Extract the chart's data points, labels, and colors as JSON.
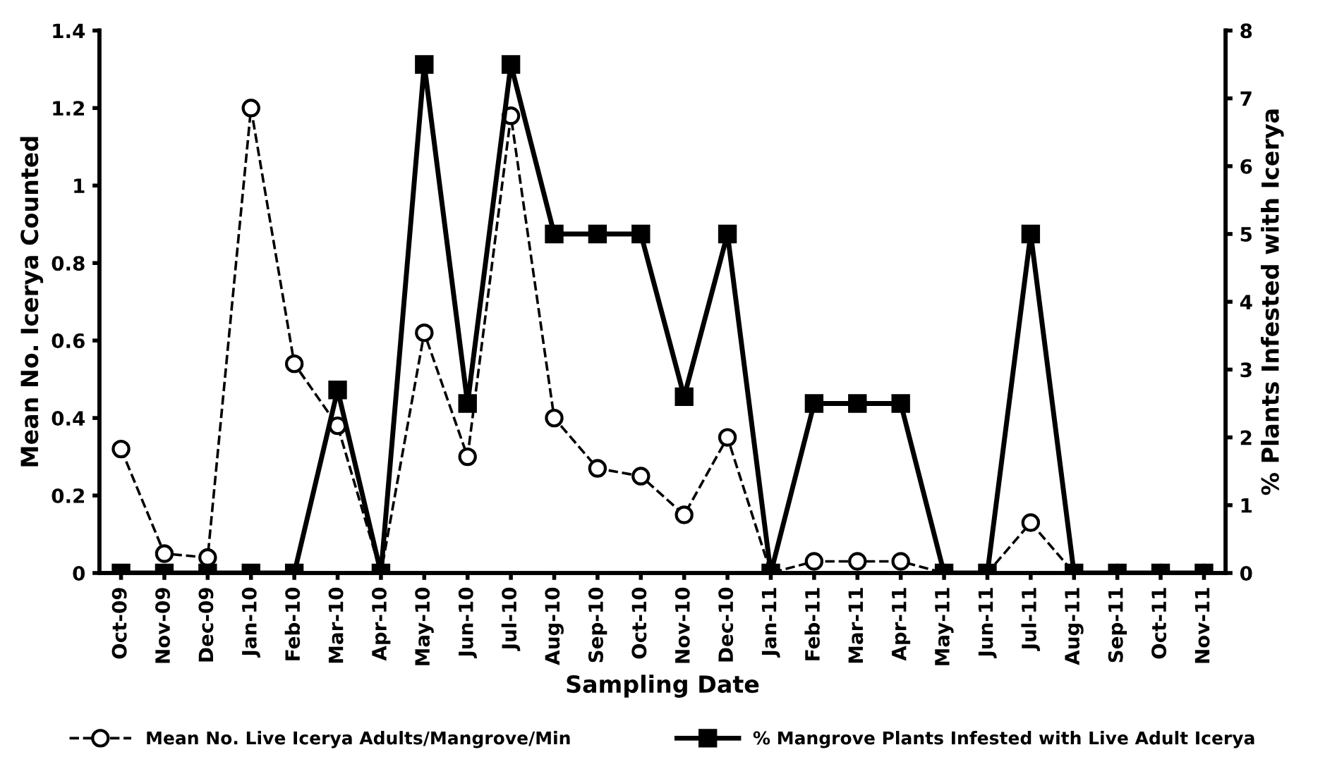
{
  "chart_data": {
    "type": "line",
    "xlabel": "Sampling Date",
    "ylabel": "Mean No. Icerya Counted",
    "y2label": "% Plants Infested with Icerya",
    "categories": [
      "Oct-09",
      "Nov-09",
      "Dec-09",
      "Jan-10",
      "Feb-10",
      "Mar-10",
      "Apr-10",
      "May-10",
      "Jun-10",
      "Jul-10",
      "Aug-10",
      "Sep-10",
      "Oct-10",
      "Nov-10",
      "Dec-10",
      "Jan-11",
      "Feb-11",
      "Mar-11",
      "Apr-11",
      "May-11",
      "Jun-11",
      "Jul-11",
      "Aug-11",
      "Sep-11",
      "Oct-11",
      "Nov-11"
    ],
    "series": [
      {
        "name": "Mean No. Live Icerya Adults/Mangrove/Min",
        "color": "#000000",
        "marker": "circle",
        "line_style": "dashed",
        "values": [
          0.32,
          0.05,
          0.04,
          1.2,
          0.54,
          0.38,
          0,
          0.62,
          0.3,
          1.18,
          0.4,
          0.27,
          0.25,
          0.15,
          0.35,
          0,
          0.03,
          0.03,
          0.03,
          0,
          0,
          0.13,
          0,
          0,
          0,
          0
        ]
      },
      {
        "name": "% Mangrove Plants Infested with Live Adult Icerya",
        "color": "#000000",
        "marker": "square",
        "line_style": "solid",
        "axis": "y2",
        "values": [
          0,
          0,
          0,
          0,
          0,
          2.7,
          0,
          7.5,
          2.5,
          7.5,
          5,
          5,
          5,
          2.6,
          5,
          0,
          2.5,
          2.5,
          2.5,
          0,
          0,
          5,
          0,
          0,
          0,
          0
        ]
      }
    ],
    "ylim": [
      0,
      1.4
    ],
    "yticks": [
      0,
      0.2,
      0.4,
      0.6,
      0.8,
      1,
      1.2,
      1.4
    ],
    "y2lim": [
      0,
      8
    ],
    "y2ticks": [
      0,
      1,
      2,
      3,
      4,
      5,
      6,
      7,
      8
    ],
    "grid": false,
    "legend": "bottom"
  }
}
